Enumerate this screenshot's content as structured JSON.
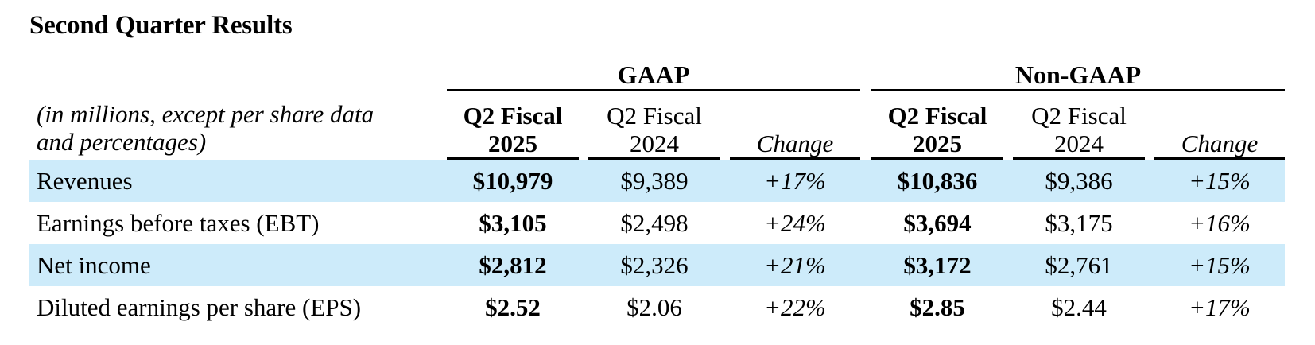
{
  "title": "Second Quarter Results",
  "groups": {
    "gaap": "GAAP",
    "non_gaap": "Non-GAAP"
  },
  "units_label": {
    "line1": "(in millions, except per share data",
    "line2": "and percentages)"
  },
  "columns": [
    {
      "line1": "Q2 Fiscal",
      "line2": "2025"
    },
    {
      "line1": "Q2 Fiscal",
      "line2": "2024"
    },
    {
      "line1": "Change",
      "line2": ""
    },
    {
      "line1": "Q2 Fiscal",
      "line2": "2025"
    },
    {
      "line1": "Q2 Fiscal",
      "line2": "2024"
    },
    {
      "line1": "Change",
      "line2": ""
    }
  ],
  "rows": [
    {
      "label": "Revenues",
      "gaap_2025": "$10,979",
      "gaap_2024": "$9,389",
      "gaap_change": "+17%",
      "nongaap_2025": "$10,836",
      "nongaap_2024": "$9,386",
      "nongaap_change": "+15%"
    },
    {
      "label": "Earnings before taxes (EBT)",
      "gaap_2025": "$3,105",
      "gaap_2024": "$2,498",
      "gaap_change": "+24%",
      "nongaap_2025": "$3,694",
      "nongaap_2024": "$3,175",
      "nongaap_change": "+16%"
    },
    {
      "label": "Net income",
      "gaap_2025": "$2,812",
      "gaap_2024": "$2,326",
      "gaap_change": "+21%",
      "nongaap_2025": "$3,172",
      "nongaap_2024": "$2,761",
      "nongaap_change": "+15%"
    },
    {
      "label": "Diluted earnings per share (EPS)",
      "gaap_2025": "$2.52",
      "gaap_2024": "$2.06",
      "gaap_change": "+22%",
      "nongaap_2025": "$2.85",
      "nongaap_2024": "$2.44",
      "nongaap_change": "+17%"
    }
  ],
  "colors": {
    "row_shade": "#cdebfa",
    "text": "#000000",
    "rule": "#000000"
  }
}
